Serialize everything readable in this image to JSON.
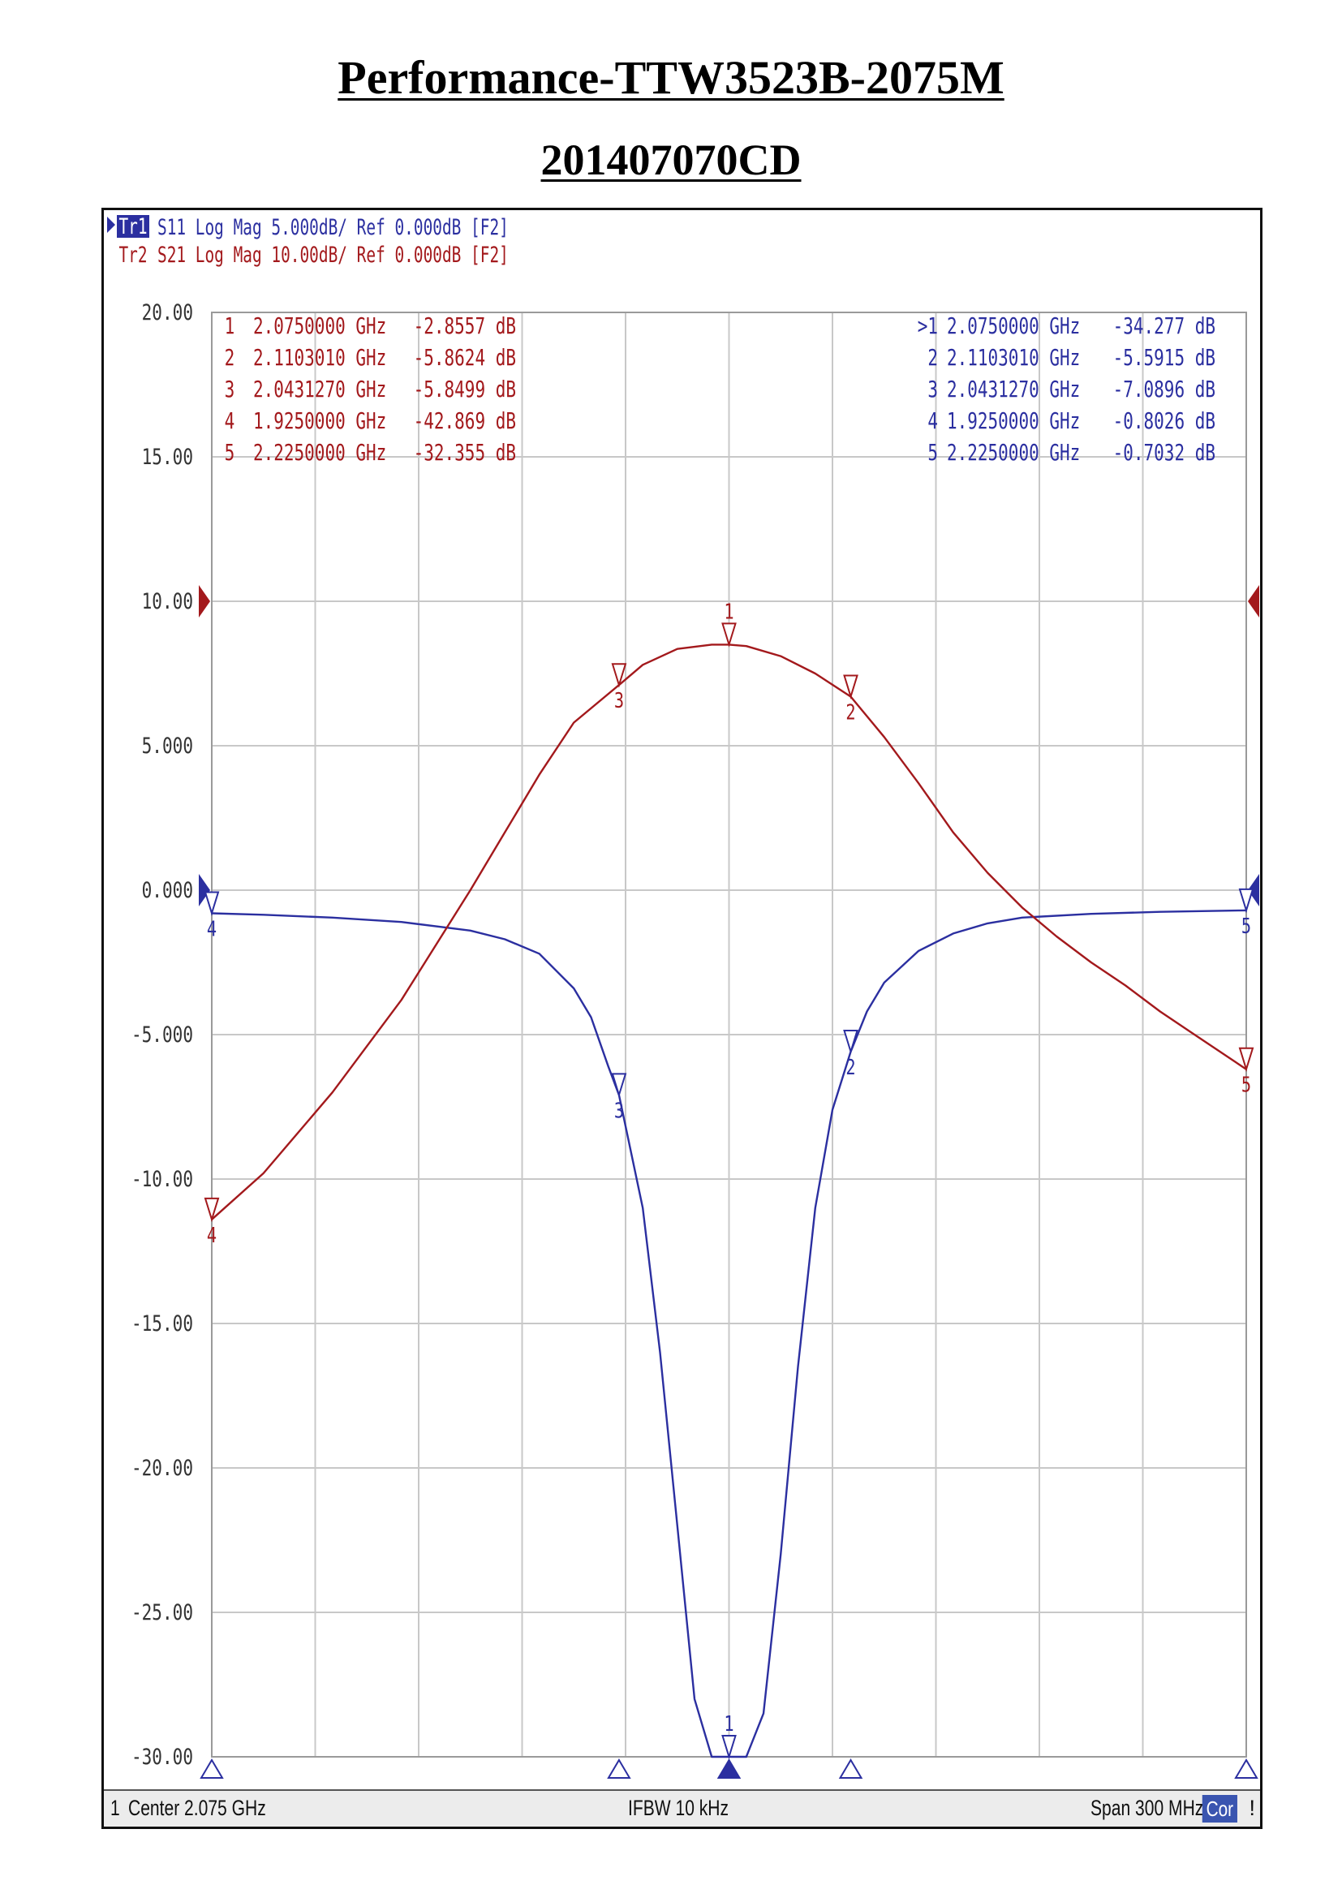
{
  "page": {
    "title": "Performance-TTW3523B-2075M",
    "subtitle": "201407070CD"
  },
  "colors": {
    "s11": "#2b2fa0",
    "s21": "#a3191c",
    "grid": "#c8c8c8",
    "cor_badge": "#3a55b0"
  },
  "analyzer": {
    "trace_headers": [
      {
        "id": "Tr1",
        "label": "S11 Log Mag 5.000dB/ Ref 0.000dB [F2]",
        "active": true
      },
      {
        "id": "Tr2",
        "label": "S21 Log Mag 10.00dB/ Ref 0.000dB [F2]",
        "active": false
      }
    ],
    "s21_marker_table": [
      {
        "n": "1",
        "freq": "2.0750000 GHz",
        "value": "-2.8557 dB"
      },
      {
        "n": "2",
        "freq": "2.1103010 GHz",
        "value": "-5.8624 dB"
      },
      {
        "n": "3",
        "freq": "2.0431270 GHz",
        "value": "-5.8499 dB"
      },
      {
        "n": "4",
        "freq": "1.9250000 GHz",
        "value": "-42.869 dB"
      },
      {
        "n": "5",
        "freq": "2.2250000 GHz",
        "value": "-32.355 dB"
      }
    ],
    "s11_marker_table": [
      {
        "n": ">1",
        "freq": "2.0750000 GHz",
        "value": "-34.277 dB"
      },
      {
        "n": "2",
        "freq": "2.1103010 GHz",
        "value": "-5.5915 dB"
      },
      {
        "n": "3",
        "freq": "2.0431270 GHz",
        "value": "-7.0896 dB"
      },
      {
        "n": "4",
        "freq": "1.9250000 GHz",
        "value": "-0.8026 dB"
      },
      {
        "n": "5",
        "freq": "2.2250000 GHz",
        "value": "-0.7032 dB"
      }
    ],
    "status": {
      "channel": "1",
      "center": "Center 2.075 GHz",
      "ifbw": "IFBW 10 kHz",
      "span": "Span 300 MHz",
      "cor": "Cor",
      "flag": "!"
    }
  },
  "chart_data": {
    "type": "line",
    "xlim": [
      1.925,
      2.225
    ],
    "ylim": [
      -30,
      20
    ],
    "grid": true,
    "x_divisions": 10,
    "y_ticks": [
      "20.00",
      "15.00",
      "10.00",
      "5.000",
      "0.000",
      "-5.000",
      "-10.00",
      "-15.00",
      "-20.00",
      "-25.00",
      "-30.00"
    ],
    "y_tick_values": [
      20,
      15,
      10,
      5,
      0,
      -5,
      -10,
      -15,
      -20,
      -25,
      -30
    ],
    "series": [
      {
        "id": "s11",
        "name": "S11",
        "color": "#2b2fa0",
        "x": [
          1.925,
          1.94,
          1.96,
          1.98,
          2.0,
          2.01,
          2.02,
          2.03,
          2.035,
          2.04,
          2.0431,
          2.05,
          2.055,
          2.06,
          2.065,
          2.07,
          2.075,
          2.08,
          2.085,
          2.09,
          2.095,
          2.1,
          2.105,
          2.1103,
          2.115,
          2.12,
          2.13,
          2.14,
          2.15,
          2.16,
          2.18,
          2.2,
          2.225
        ],
        "y": [
          -0.8,
          -0.85,
          -0.95,
          -1.1,
          -1.4,
          -1.7,
          -2.2,
          -3.4,
          -4.4,
          -6.1,
          -7.09,
          -11.0,
          -16.0,
          -22.0,
          -28.0,
          -30.0,
          -30.0,
          -30.0,
          -28.5,
          -23.0,
          -16.5,
          -11.0,
          -7.6,
          -5.59,
          -4.2,
          -3.2,
          -2.1,
          -1.5,
          -1.15,
          -0.95,
          -0.82,
          -0.75,
          -0.7
        ]
      },
      {
        "id": "s21",
        "name": "S21",
        "color": "#a3191c",
        "x": [
          1.925,
          1.94,
          1.96,
          1.98,
          2.0,
          2.01,
          2.02,
          2.03,
          2.0431,
          2.05,
          2.06,
          2.07,
          2.075,
          2.08,
          2.09,
          2.1,
          2.1103,
          2.12,
          2.13,
          2.14,
          2.15,
          2.16,
          2.17,
          2.18,
          2.19,
          2.2,
          2.21,
          2.225
        ],
        "y": [
          -11.4,
          -9.8,
          -7.0,
          -3.8,
          0.0,
          2.0,
          4.0,
          5.8,
          7.1,
          7.8,
          8.35,
          8.5,
          8.5,
          8.45,
          8.1,
          7.5,
          6.7,
          5.3,
          3.7,
          2.0,
          0.6,
          -0.6,
          -1.6,
          -2.5,
          -3.3,
          -4.2,
          -5.0,
          -6.2
        ]
      }
    ],
    "markers": {
      "s11": [
        {
          "n": "1",
          "x": 2.075,
          "y": -30
        },
        {
          "n": "2",
          "x": 2.1103,
          "y": -5.59
        },
        {
          "n": "3",
          "x": 2.0431,
          "y": -7.09
        },
        {
          "n": "4",
          "x": 1.925,
          "y": -0.8
        },
        {
          "n": "5",
          "x": 2.225,
          "y": -0.7
        }
      ],
      "s21": [
        {
          "n": "1",
          "x": 2.075,
          "y": 8.5
        },
        {
          "n": "2",
          "x": 2.1103,
          "y": 6.7
        },
        {
          "n": "3",
          "x": 2.0431,
          "y": 7.1
        },
        {
          "n": "4",
          "x": 1.925,
          "y": -11.4
        },
        {
          "n": "5",
          "x": 2.225,
          "y": -6.2
        }
      ]
    },
    "bottom_stimulus_markers": [
      1.925,
      2.0431,
      2.075,
      2.1103,
      2.225
    ]
  }
}
